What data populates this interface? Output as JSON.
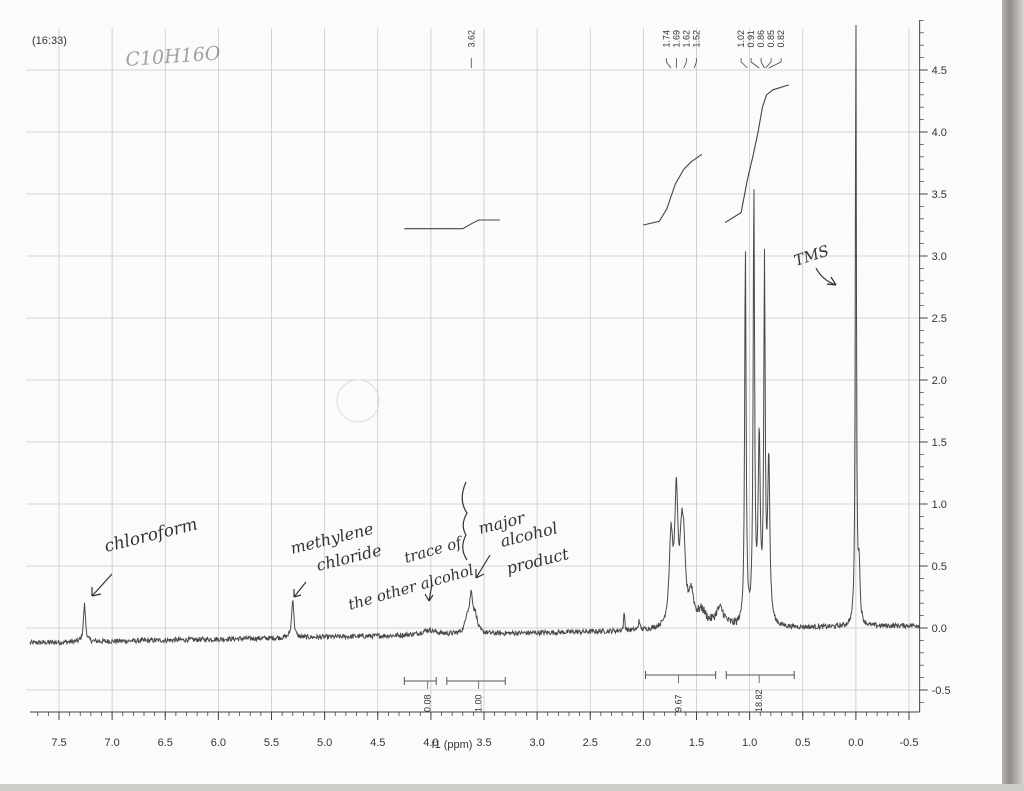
{
  "timestamp": "(16:33)",
  "formula_note": "C10H16O",
  "chart_data": {
    "type": "line",
    "title": "",
    "xlabel": "f1 (ppm)",
    "ylabel": "",
    "xlim": [
      7.75,
      -0.6
    ],
    "ylim": [
      -0.65,
      4.95
    ],
    "x_reversed": true,
    "grid": true,
    "x_ticks": [
      7.5,
      7.0,
      6.5,
      6.0,
      5.5,
      5.0,
      4.5,
      4.0,
      3.5,
      3.0,
      2.5,
      2.0,
      1.5,
      1.0,
      0.5,
      0.0,
      -0.5
    ],
    "x_tick_labels": [
      "7.5",
      "7.0",
      "6.5",
      "6.0",
      "5.5",
      "5.0",
      "4.5",
      "4.0",
      "3.5",
      "3.0",
      "2.5",
      "2.0",
      "1.5",
      "1.0",
      "0.5",
      "0.0",
      "-0.5"
    ],
    "y_ticks": [
      4.5,
      4.0,
      3.5,
      3.0,
      2.5,
      2.0,
      1.5,
      1.0,
      0.5,
      0.0,
      -0.5
    ],
    "y_tick_labels": [
      "4.5",
      "4.0",
      "3.5",
      "3.0",
      "2.5",
      "2.0",
      "1.5",
      "1.0",
      "0.5",
      "0.0",
      "-0.5"
    ],
    "peak_labels": [
      "3.62",
      "1.74",
      "1.69",
      "1.62",
      "1.52",
      "1.02",
      "0.91",
      "0.86",
      "0.85",
      "0.82"
    ],
    "peak_label_positions": [
      3.62,
      1.74,
      1.69,
      1.62,
      1.52,
      1.02,
      0.91,
      0.86,
      0.85,
      0.82
    ],
    "peaks": [
      {
        "x": 7.26,
        "height": 0.3,
        "width": 0.012
      },
      {
        "x": 5.3,
        "height": 0.32,
        "width": 0.012
      },
      {
        "x": 4.02,
        "height": 0.04,
        "width": 0.08
      },
      {
        "x": 3.62,
        "height": 0.3,
        "width": 0.02
      },
      {
        "x": 3.58,
        "height": 0.12,
        "width": 0.02
      },
      {
        "x": 3.66,
        "height": 0.12,
        "width": 0.02
      },
      {
        "x": 2.18,
        "height": 0.15,
        "width": 0.006
      },
      {
        "x": 2.04,
        "height": 0.09,
        "width": 0.006
      },
      {
        "x": 1.74,
        "height": 0.7,
        "width": 0.02
      },
      {
        "x": 1.69,
        "height": 1.0,
        "width": 0.018
      },
      {
        "x": 1.64,
        "height": 0.55,
        "width": 0.02
      },
      {
        "x": 1.62,
        "height": 0.45,
        "width": 0.02
      },
      {
        "x": 1.55,
        "height": 0.25,
        "width": 0.03
      },
      {
        "x": 1.45,
        "height": 0.12,
        "width": 0.05
      },
      {
        "x": 1.28,
        "height": 0.15,
        "width": 0.05
      },
      {
        "x": 1.04,
        "height": 3.05,
        "width": 0.008
      },
      {
        "x": 0.96,
        "height": 3.45,
        "width": 0.008
      },
      {
        "x": 0.91,
        "height": 1.45,
        "width": 0.012
      },
      {
        "x": 0.86,
        "height": 2.85,
        "width": 0.008
      },
      {
        "x": 0.82,
        "height": 1.3,
        "width": 0.012
      },
      {
        "x": 0.0,
        "height": 5.0,
        "width": 0.006
      },
      {
        "x": -0.03,
        "height": 0.45,
        "width": 0.01
      }
    ],
    "baseline": {
      "left": -0.12,
      "right": 0.02
    },
    "integrals": [
      {
        "from": 4.25,
        "to": 3.95,
        "value": "0.08",
        "label_x": 4.03
      },
      {
        "from": 3.85,
        "to": 3.3,
        "value": "1.00",
        "label_x": 3.55
      },
      {
        "from": 1.98,
        "to": 1.32,
        "value": "9.67",
        "label_x": 1.67
      },
      {
        "from": 1.22,
        "to": 0.58,
        "value": "18.82",
        "label_x": 0.91
      }
    ],
    "integral_curves": [
      {
        "x": [
          4.25,
          3.85,
          3.7,
          3.62,
          3.55,
          3.35
        ],
        "y": [
          3.22,
          3.22,
          3.22,
          3.26,
          3.29,
          3.29
        ]
      },
      {
        "x": [
          2.0,
          1.85,
          1.78,
          1.7,
          1.62,
          1.55,
          1.45
        ],
        "y": [
          3.25,
          3.28,
          3.38,
          3.58,
          3.7,
          3.76,
          3.82
        ]
      },
      {
        "x": [
          1.23,
          1.08,
          1.02,
          0.97,
          0.92,
          0.88,
          0.84,
          0.78,
          0.63
        ],
        "y": [
          3.27,
          3.35,
          3.62,
          3.8,
          4.0,
          4.2,
          4.3,
          4.34,
          4.38
        ]
      }
    ]
  },
  "annotations": {
    "chloroform": "chloroform",
    "methylene_line1": "methylene",
    "methylene_line2": "chloride",
    "trace_line1": "trace of",
    "trace_line2": "the other alcohol",
    "major_line1": "major",
    "major_line2": "alcohol",
    "major_line3": "product",
    "tms": "TMS"
  }
}
